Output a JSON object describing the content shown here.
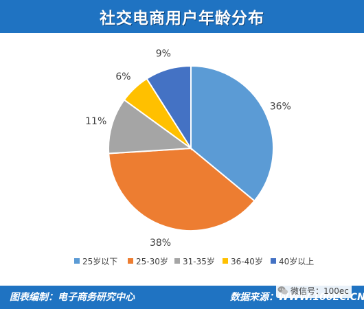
{
  "header": {
    "title": "社交电商用户年龄分布"
  },
  "footer": {
    "left_text": "图表编制：电子商务研究中心",
    "right_label": "数据来源：",
    "right_url": "WWW.100EC.CN",
    "wechat_label": "微信号：100ec"
  },
  "colors": {
    "header_bg": "#1f73c2",
    "slice_1": "#5b9bd5",
    "slice_2": "#ed7d31",
    "slice_3": "#a5a5a5",
    "slice_4": "#ffc000",
    "slice_5": "#4472c4"
  },
  "chart_data": {
    "type": "pie",
    "title": "社交电商用户年龄分布",
    "legend_position": "bottom",
    "slices": [
      {
        "label": "25岁以下",
        "value": 36,
        "display": "36%",
        "color": "#5b9bd5"
      },
      {
        "label": "25-30岁",
        "value": 38,
        "display": "38%",
        "color": "#ed7d31"
      },
      {
        "label": "31-35岁",
        "value": 11,
        "display": "11%",
        "color": "#a5a5a5"
      },
      {
        "label": "36-40岁",
        "value": 6,
        "display": "6%",
        "color": "#ffc000"
      },
      {
        "label": "40岁以上",
        "value": 9,
        "display": "9%",
        "color": "#4472c4"
      }
    ]
  }
}
